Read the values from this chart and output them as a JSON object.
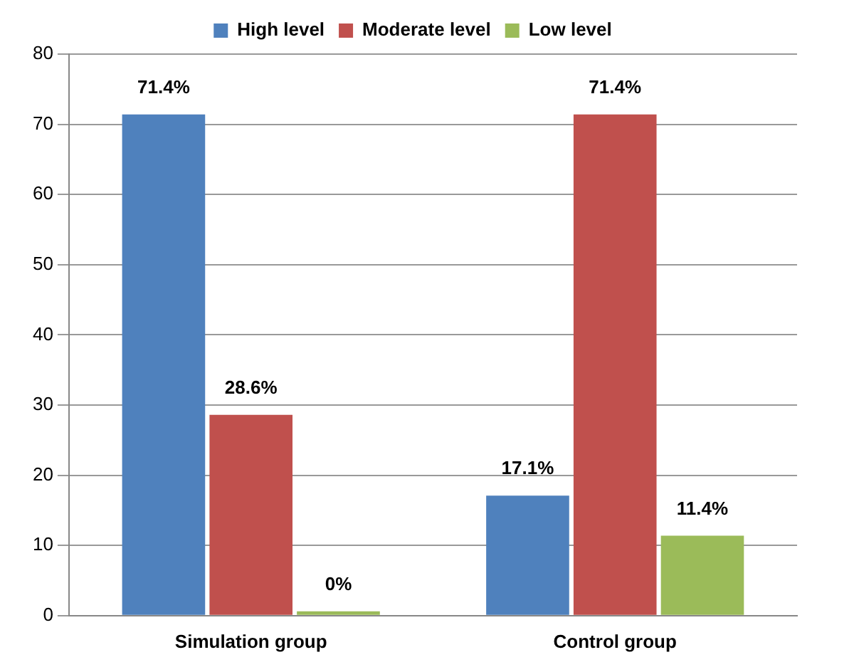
{
  "chart_data": {
    "type": "bar",
    "categories": [
      "Simulation group",
      "Control group"
    ],
    "series": [
      {
        "name": "High level",
        "color": "#4f81bd",
        "values": [
          71.4,
          17.1
        ],
        "value_labels": [
          "71.4%",
          "17.1%"
        ]
      },
      {
        "name": "Moderate level",
        "color": "#c0504d",
        "values": [
          28.6,
          71.4
        ],
        "value_labels": [
          "28.6%",
          "71.4%"
        ]
      },
      {
        "name": "Low level",
        "color": "#9bbb59",
        "values": [
          0,
          11.4
        ],
        "value_labels": [
          "0%",
          "11.4%"
        ]
      }
    ],
    "ylim": [
      0,
      80
    ],
    "yticks": [
      0,
      10,
      20,
      30,
      40,
      50,
      60,
      70,
      80
    ],
    "grid": "y",
    "legend": "top"
  }
}
